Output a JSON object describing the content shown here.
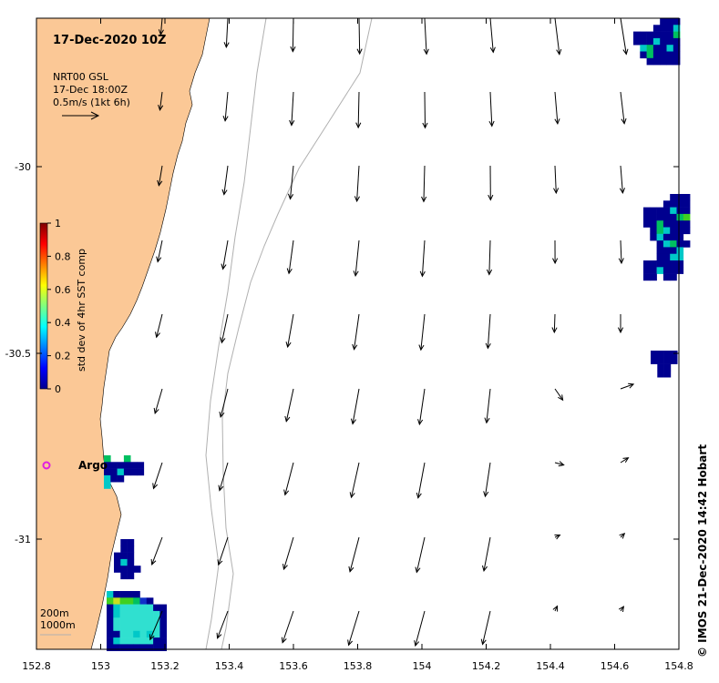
{
  "map": {
    "title": "17-Dec-2020 10Z",
    "product": "NRT00 GSL",
    "product_time": "17-Dec 18:00Z",
    "vector_scale_label": "0.5m/s (1kt 6h)",
    "x_ticks": [
      "152.8",
      "153",
      "153.2",
      "153.4",
      "153.6",
      "153.8",
      "154",
      "154.2",
      "154.4",
      "154.6",
      "154.8"
    ],
    "y_ticks": [
      "-30",
      "-30.5",
      "-31"
    ],
    "lon_range": [
      152.8,
      154.8
    ],
    "lat_range": [
      -29.6,
      -31.3
    ],
    "argo_label": "Argo",
    "isobaths": [
      "200m",
      "1000m"
    ],
    "credit": "© IMOS 21-Dec-2020 14:42 Hobart",
    "land_color": "#fbc896",
    "argo_color": "#e020e0",
    "isobath_color": "#b0b0b0"
  },
  "colorbar": {
    "label": "std dev of 4hr SST comp",
    "ticks": [
      "1",
      "0.8",
      "0.6",
      "0.4",
      "0.2",
      "0"
    ],
    "range": [
      0,
      1
    ],
    "colormap": "jet"
  }
}
